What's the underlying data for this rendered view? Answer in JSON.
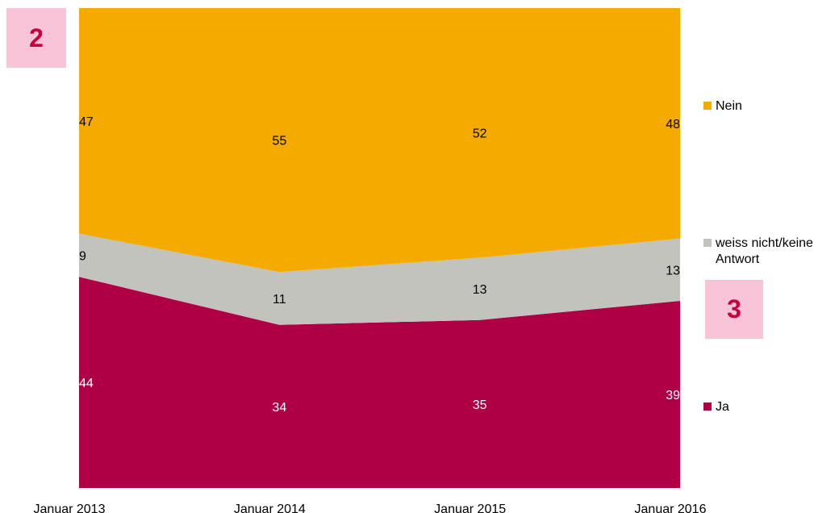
{
  "badges": {
    "left": "2",
    "right": "3"
  },
  "chart_data": {
    "type": "area",
    "stacked": true,
    "categories": [
      "Januar 2013",
      "Januar 2014",
      "Januar 2015",
      "Januar 2016"
    ],
    "ylim": [
      0,
      100
    ],
    "series": [
      {
        "name": "Ja",
        "values": [
          44,
          34,
          35,
          39
        ],
        "color": "#af0046",
        "label_color": "#ffffff"
      },
      {
        "name": "weiss nicht/keine Antwort",
        "values": [
          9,
          11,
          13,
          13
        ],
        "color": "#c3c3bd",
        "label_color": "#000000"
      },
      {
        "name": "Nein",
        "values": [
          47,
          55,
          52,
          48
        ],
        "color": "#f5aa00",
        "label_color": "#000000"
      }
    ],
    "legend_placement": "right"
  }
}
